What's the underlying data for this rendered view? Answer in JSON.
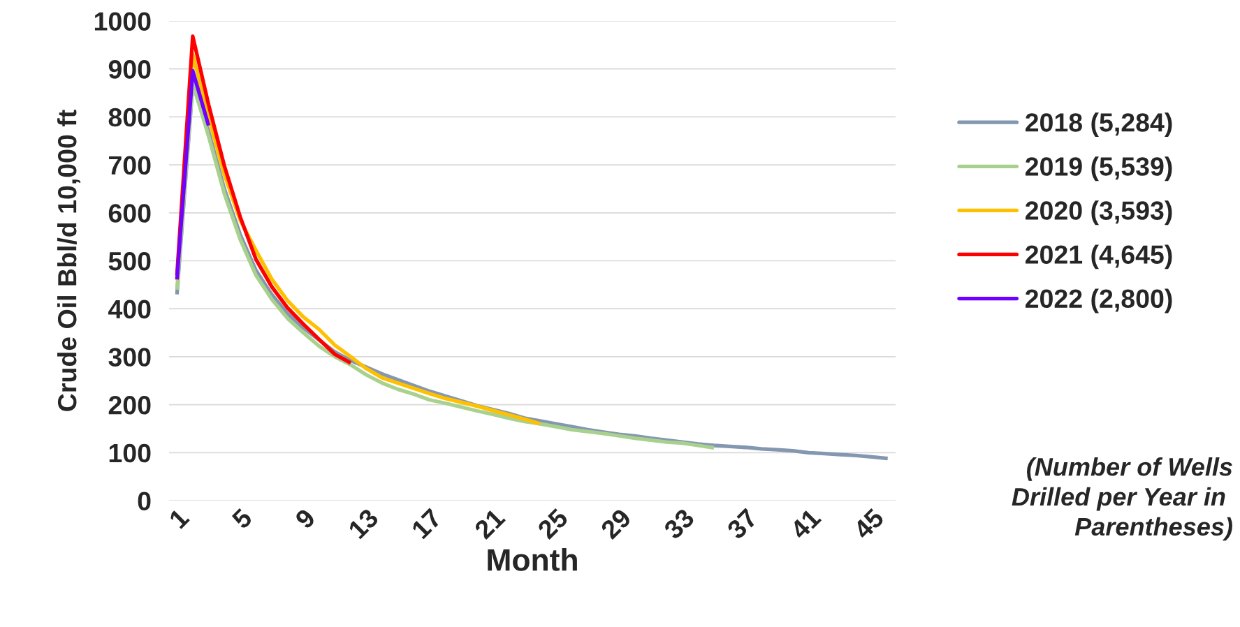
{
  "chart_data": {
    "type": "line",
    "xlabel": "Month",
    "ylabel": "Crude Oil Bbl/d 10,000 ft",
    "categories": [
      "1",
      null,
      null,
      null,
      "5",
      null,
      null,
      null,
      "9",
      null,
      null,
      null,
      "13",
      null,
      null,
      null,
      "17",
      null,
      null,
      null,
      "21",
      null,
      null,
      null,
      "25",
      null,
      null,
      null,
      "29",
      null,
      null,
      null,
      "33",
      null,
      null,
      null,
      "37",
      null,
      null,
      null,
      "41",
      null,
      null,
      null,
      "45",
      null
    ],
    "series": [
      {
        "name": "2018 (5,284)",
        "color": "#8497b0",
        "values": [
          430,
          868,
          770,
          650,
          555,
          480,
          430,
          390,
          360,
          335,
          310,
          292,
          278,
          264,
          252,
          240,
          228,
          218,
          208,
          198,
          190,
          182,
          172,
          166,
          160,
          154,
          148,
          143,
          138,
          135,
          130,
          126,
          122,
          118,
          115,
          113,
          111,
          108,
          106,
          104,
          100,
          98,
          96,
          94,
          91,
          88
        ]
      },
      {
        "name": "2019 (5,539)",
        "color": "#a9d18e",
        "values": [
          440,
          870,
          760,
          640,
          545,
          470,
          420,
          380,
          350,
          322,
          300,
          283,
          262,
          245,
          232,
          222,
          210,
          203,
          195,
          187,
          180,
          172,
          165,
          160,
          154,
          148,
          144,
          140,
          135,
          130,
          126,
          122,
          120,
          115,
          110,
          null,
          null,
          null,
          null,
          null,
          null,
          null,
          null,
          null,
          null,
          null
        ]
      },
      {
        "name": "2020 (3,593)",
        "color": "#ffc000",
        "values": [
          460,
          930,
          800,
          680,
          585,
          522,
          462,
          417,
          383,
          357,
          324,
          300,
          275,
          256,
          245,
          234,
          223,
          213,
          205,
          197,
          188,
          179,
          170,
          160,
          null,
          null,
          null,
          null,
          null,
          null,
          null,
          null,
          null,
          null,
          null,
          null,
          null,
          null,
          null,
          null,
          null,
          null,
          null,
          null,
          null,
          null
        ]
      },
      {
        "name": "2021 (4,645)",
        "color": "#ff0000",
        "values": [
          470,
          968,
          826,
          698,
          592,
          503,
          446,
          402,
          368,
          336,
          305,
          287,
          null,
          null,
          null,
          null,
          null,
          null,
          null,
          null,
          null,
          null,
          null,
          null,
          null,
          null,
          null,
          null,
          null,
          null,
          null,
          null,
          null,
          null,
          null,
          null,
          null,
          null,
          null,
          null,
          null,
          null,
          null,
          null,
          null,
          null
        ]
      },
      {
        "name": "2022 (2,800)",
        "color": "#7000ff",
        "values": [
          461,
          896,
          782,
          null,
          null,
          null,
          null,
          null,
          null,
          null,
          null,
          null,
          null,
          null,
          null,
          null,
          null,
          null,
          null,
          null,
          null,
          null,
          null,
          null,
          null,
          null,
          null,
          null,
          null,
          null,
          null,
          null,
          null,
          null,
          null,
          null,
          null,
          null,
          null,
          null,
          null,
          null,
          null,
          null,
          null,
          null
        ]
      }
    ],
    "ylim": [
      0,
      1000
    ],
    "yticks": [
      0,
      100,
      200,
      300,
      400,
      500,
      600,
      700,
      800,
      900,
      1000
    ],
    "grid": "y",
    "legend": "right",
    "line_style": "solid",
    "marker": "none",
    "annotations": [
      "(Number of Wells\nDrilled per Year in \nParentheses)"
    ]
  }
}
